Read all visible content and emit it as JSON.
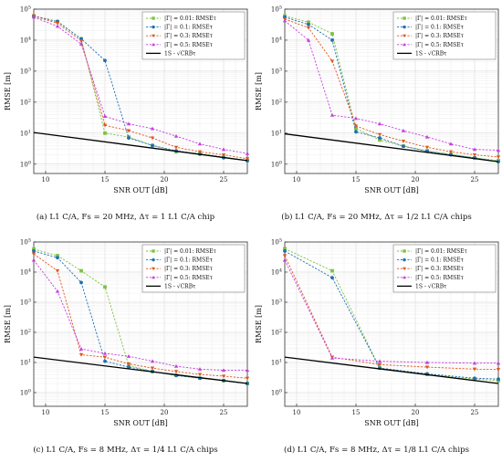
{
  "chart_data": [
    {
      "type": "line",
      "caption": "(a) L1 C/A, Fs = 20 MHz, Δτ = 1 L1 C/A chip",
      "xlabel": "SNR OUT [dB]",
      "ylabel": "RMSE [m]",
      "xlim": [
        9,
        27
      ],
      "ylim": [
        0.5,
        100000
      ],
      "yscale": "log",
      "xticks": [
        "10",
        "15",
        "20",
        "25"
      ],
      "yticks": [
        "10^0",
        "10^1",
        "10^2",
        "10^3",
        "10^4",
        "10^5"
      ],
      "grid": true,
      "legend_position": "top-right",
      "series": [
        {
          "name": "|Γ| = 0.01: RMSEτ",
          "color": "#7dc242",
          "marker": "square",
          "x": [
            9,
            11,
            13,
            15,
            17,
            19,
            21,
            23,
            25,
            27
          ],
          "y": [
            60000,
            40000,
            11000,
            10,
            7.5,
            4,
            2.5,
            2.2,
            1.7,
            1.3
          ]
        },
        {
          "name": "|Γ| = 0.1: RMSEτ",
          "color": "#1f6fb5",
          "marker": "circle",
          "x": [
            9,
            11,
            13,
            15,
            17,
            19,
            21,
            23,
            25,
            27
          ],
          "y": [
            60000,
            40000,
            11000,
            2200,
            7,
            4,
            2.7,
            2.1,
            1.6,
            1.3
          ]
        },
        {
          "name": "|Γ| = 0.3: RMSEτ",
          "color": "#e0541c",
          "marker": "triangle-down",
          "x": [
            9,
            11,
            13,
            15,
            17,
            19,
            21,
            23,
            25,
            27
          ],
          "y": [
            60000,
            35000,
            9500,
            18,
            12,
            7,
            3.5,
            2.5,
            2,
            1.5
          ]
        },
        {
          "name": "|Γ| = 0.5: RMSEτ",
          "color": "#c43fe0",
          "marker": "triangle-up",
          "x": [
            9,
            11,
            13,
            15,
            17,
            19,
            21,
            23,
            25,
            27
          ],
          "y": [
            55000,
            28000,
            7500,
            35,
            20,
            14,
            8,
            4.5,
            3,
            2.2
          ]
        },
        {
          "name": "1S - √CRBτ",
          "color": "#000000",
          "marker": "none",
          "x": [
            9,
            27
          ],
          "y": [
            10.5,
            1.3
          ]
        }
      ]
    },
    {
      "type": "line",
      "caption": "(b) L1 C/A, Fs = 20 MHz, Δτ = 1/2 L1 C/A chips",
      "xlabel": "SNR OUT [dB]",
      "ylabel": "RMSE [m]",
      "xlim": [
        9,
        27
      ],
      "ylim": [
        0.5,
        100000
      ],
      "yscale": "log",
      "xticks": [
        "10",
        "15",
        "20",
        "25"
      ],
      "yticks": [
        "10^0",
        "10^1",
        "10^2",
        "10^3",
        "10^4",
        "10^5"
      ],
      "grid": true,
      "legend_position": "top-right",
      "series": [
        {
          "name": "|Γ| = 0.01: RMSEτ",
          "color": "#7dc242",
          "marker": "square",
          "x": [
            9,
            11,
            13,
            15,
            17,
            19,
            21,
            23,
            25,
            27
          ],
          "y": [
            60000,
            38000,
            16000,
            14,
            6,
            3.8,
            2.7,
            2.1,
            1.6,
            1.3
          ]
        },
        {
          "name": "|Γ| = 0.1: RMSEτ",
          "color": "#1f6fb5",
          "marker": "circle",
          "x": [
            9,
            11,
            13,
            15,
            17,
            19,
            21,
            23,
            25,
            27
          ],
          "y": [
            55000,
            32000,
            10000,
            11,
            7,
            3.8,
            2.6,
            2,
            1.6,
            1.2
          ]
        },
        {
          "name": "|Γ| = 0.3: RMSEτ",
          "color": "#e0541c",
          "marker": "triangle-down",
          "x": [
            9,
            11,
            13,
            15,
            17,
            19,
            21,
            23,
            25,
            27
          ],
          "y": [
            48000,
            25000,
            2100,
            17,
            9,
            5.5,
            3.5,
            2.5,
            2,
            1.7
          ]
        },
        {
          "name": "|Γ| = 0.5: RMSEτ",
          "color": "#c43fe0",
          "marker": "triangle-up",
          "x": [
            9,
            11,
            13,
            15,
            17,
            19,
            21,
            23,
            25,
            27
          ],
          "y": [
            42000,
            10000,
            38,
            30,
            20,
            12,
            7.5,
            4.5,
            3,
            2.8
          ]
        },
        {
          "name": "1S - √CRBτ",
          "color": "#000000",
          "marker": "none",
          "x": [
            9,
            27
          ],
          "y": [
            9.5,
            1.2
          ]
        }
      ]
    },
    {
      "type": "line",
      "caption": "(c) L1 C/A, Fs = 8 MHz, Δτ = 1/4 L1 C/A chips",
      "xlabel": "SNR OUT [dB]",
      "ylabel": "RMSE [m]",
      "xlim": [
        9,
        27
      ],
      "ylim": [
        0.35,
        100000
      ],
      "yscale": "log",
      "xticks": [
        "10",
        "15",
        "20",
        "25"
      ],
      "yticks": [
        "10^0",
        "10^1",
        "10^2",
        "10^3",
        "10^4",
        "10^5"
      ],
      "grid": true,
      "legend_position": "top-right",
      "series": [
        {
          "name": "|Γ| = 0.01: RMSEτ",
          "color": "#7dc242",
          "marker": "square",
          "x": [
            9,
            11,
            13,
            15,
            17,
            19,
            21,
            23,
            25,
            27
          ],
          "y": [
            58000,
            35000,
            11000,
            3200,
            8,
            5,
            3.7,
            3,
            2.5,
            2
          ]
        },
        {
          "name": "|Γ| = 0.1: RMSEτ",
          "color": "#1f6fb5",
          "marker": "circle",
          "x": [
            9,
            11,
            13,
            15,
            17,
            19,
            21,
            23,
            25,
            27
          ],
          "y": [
            50000,
            30000,
            4500,
            11,
            7,
            5,
            3.7,
            3,
            2.5,
            2
          ]
        },
        {
          "name": "|Γ| = 0.3: RMSEτ",
          "color": "#e0541c",
          "marker": "triangle-down",
          "x": [
            9,
            11,
            13,
            15,
            17,
            19,
            21,
            23,
            25,
            27
          ],
          "y": [
            40000,
            11000,
            18,
            15,
            9,
            6.5,
            5,
            4,
            3.5,
            3
          ]
        },
        {
          "name": "|Γ| = 0.5: RMSEτ",
          "color": "#c43fe0",
          "marker": "triangle-up",
          "x": [
            9,
            11,
            13,
            15,
            17,
            19,
            21,
            23,
            25,
            27
          ],
          "y": [
            25000,
            2300,
            28,
            20,
            16,
            11,
            7.5,
            6,
            5.5,
            5.5
          ]
        },
        {
          "name": "1S - √CRBτ",
          "color": "#000000",
          "marker": "none",
          "x": [
            9,
            27
          ],
          "y": [
            15,
            2
          ]
        }
      ]
    },
    {
      "type": "line",
      "caption": "(d) L1 C/A, Fs = 8 MHz, Δτ = 1/8 L1 C/A chips",
      "xlabel": "SNR OUT [dB]",
      "ylabel": "RMSE [m]",
      "xlim": [
        9,
        27
      ],
      "ylim": [
        0.35,
        100000
      ],
      "yscale": "log",
      "xticks": [
        "10",
        "15",
        "20",
        "25"
      ],
      "yticks": [
        "10^0",
        "10^1",
        "10^2",
        "10^3",
        "10^4",
        "10^5"
      ],
      "grid": true,
      "legend_position": "top-right",
      "series": [
        {
          "name": "|Γ| = 0.01: RMSEτ",
          "color": "#7dc242",
          "marker": "square",
          "x": [
            9,
            13,
            17,
            21,
            25,
            27
          ],
          "y": [
            60000,
            11000,
            6.5,
            4,
            2.8,
            2.5
          ]
        },
        {
          "name": "|Γ| = 0.1: RMSEτ",
          "color": "#1f6fb5",
          "marker": "circle",
          "x": [
            9,
            13,
            17,
            21,
            25,
            27
          ],
          "y": [
            50000,
            6500,
            6.5,
            4.2,
            3,
            2.8
          ]
        },
        {
          "name": "|Γ| = 0.3: RMSEτ",
          "color": "#e0541c",
          "marker": "triangle-down",
          "x": [
            9,
            13,
            17,
            21,
            25,
            27
          ],
          "y": [
            35000,
            15,
            8.5,
            7,
            6,
            5.8
          ]
        },
        {
          "name": "|Γ| = 0.5: RMSEτ",
          "color": "#c43fe0",
          "marker": "triangle-up",
          "x": [
            9,
            13,
            17,
            21,
            25,
            27
          ],
          "y": [
            25000,
            14,
            11,
            10,
            9.5,
            9.5
          ]
        },
        {
          "name": "1S - √CRBτ",
          "color": "#000000",
          "marker": "none",
          "x": [
            9,
            27
          ],
          "y": [
            15,
            2
          ]
        }
      ]
    }
  ]
}
